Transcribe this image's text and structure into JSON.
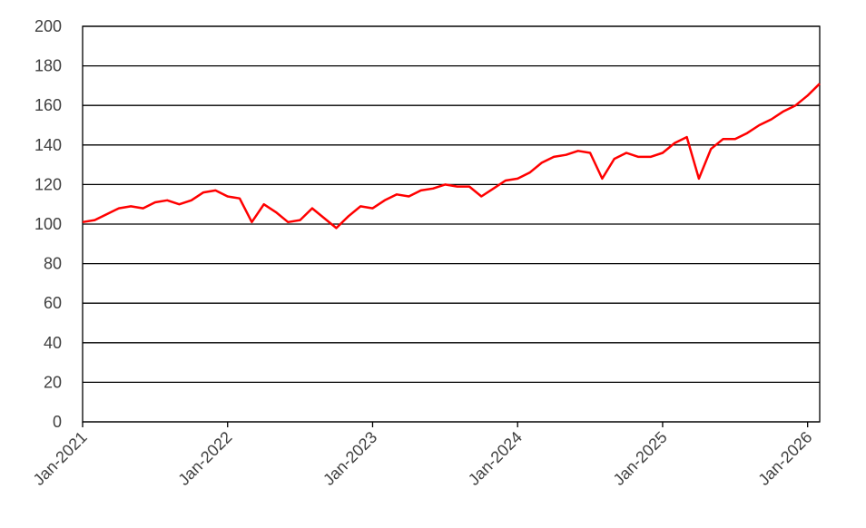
{
  "chart_data": {
    "type": "line",
    "x": [
      "2021-01",
      "2021-02",
      "2021-03",
      "2021-04",
      "2021-05",
      "2021-06",
      "2021-07",
      "2021-08",
      "2021-09",
      "2021-10",
      "2021-11",
      "2021-12",
      "2022-01",
      "2022-02",
      "2022-03",
      "2022-04",
      "2022-05",
      "2022-06",
      "2022-07",
      "2022-08",
      "2022-09",
      "2022-10",
      "2022-11",
      "2022-12",
      "2023-01",
      "2023-02",
      "2023-03",
      "2023-04",
      "2023-05",
      "2023-06",
      "2023-07",
      "2023-08",
      "2023-09",
      "2023-10",
      "2023-11",
      "2023-12",
      "2024-01",
      "2024-02",
      "2024-03",
      "2024-04",
      "2024-05",
      "2024-06",
      "2024-07",
      "2024-08",
      "2024-09",
      "2024-10",
      "2024-11",
      "2024-12",
      "2025-01",
      "2025-02",
      "2025-03",
      "2025-04",
      "2025-05",
      "2025-06",
      "2025-07",
      "2025-08",
      "2025-09",
      "2025-10",
      "2025-11",
      "2025-12",
      "2026-01",
      "2026-02"
    ],
    "series": [
      {
        "color": "#ff0000",
        "values": [
          101,
          102,
          105,
          108,
          109,
          108,
          111,
          112,
          110,
          112,
          116,
          117,
          114,
          113,
          101,
          110,
          106,
          101,
          102,
          108,
          103,
          98,
          104,
          109,
          108,
          112,
          115,
          114,
          117,
          118,
          120,
          119,
          119,
          114,
          118,
          122,
          123,
          126,
          131,
          134,
          135,
          137,
          136,
          123,
          133,
          136,
          134,
          134,
          136,
          141,
          144,
          123,
          138,
          143,
          143,
          146,
          150,
          153,
          157,
          160,
          165,
          171
        ]
      }
    ],
    "xlim": [
      "2021-01",
      "2026-02"
    ],
    "xticks": [
      {
        "value": "2021-01",
        "label": "Jan-2021"
      },
      {
        "value": "2022-01",
        "label": "Jan-2022"
      },
      {
        "value": "2023-01",
        "label": "Jan-2023"
      },
      {
        "value": "2024-01",
        "label": "Jan-2024"
      },
      {
        "value": "2025-01",
        "label": "Jan-2025"
      },
      {
        "value": "2026-01",
        "label": "Jan-2026"
      }
    ],
    "ylim": [
      0,
      200
    ],
    "yticks": [
      0,
      20,
      40,
      60,
      80,
      100,
      120,
      140,
      160,
      180,
      200
    ],
    "grid": true
  }
}
